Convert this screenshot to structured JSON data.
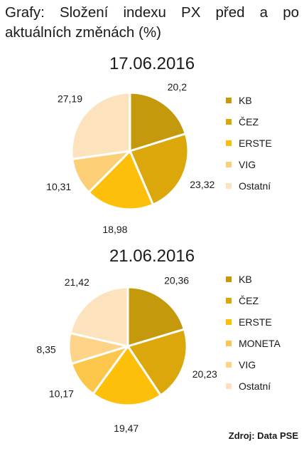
{
  "header": {
    "title_words": [
      "Grafy:",
      "Složení",
      "indexu",
      "PX",
      "před",
      "a",
      "po"
    ],
    "title_line2": "aktuálních změnách (%)"
  },
  "source": "Zdroj: Data PSE",
  "chart_data": [
    {
      "type": "pie",
      "title": "17.06.2016",
      "legend_position": "right",
      "slices": [
        {
          "name": "KB",
          "value": 20.2,
          "label": "20,2",
          "color": "#c49a0c"
        },
        {
          "name": "ČEZ",
          "value": 23.32,
          "label": "23,32",
          "color": "#dba70a"
        },
        {
          "name": "ERSTE",
          "value": 18.98,
          "label": "18,98",
          "color": "#fdbf09"
        },
        {
          "name": "VIG",
          "value": 10.31,
          "label": "10,31",
          "color": "#fccf77"
        },
        {
          "name": "Ostatní",
          "value": 27.19,
          "label": "27,19",
          "color": "#fde3bd"
        }
      ]
    },
    {
      "type": "pie",
      "title": "21.06.2016",
      "legend_position": "right",
      "slices": [
        {
          "name": "KB",
          "value": 20.36,
          "label": "20,36",
          "color": "#c49a0c"
        },
        {
          "name": "ČEZ",
          "value": 20.23,
          "label": "20,23",
          "color": "#dba70a"
        },
        {
          "name": "ERSTE",
          "value": 19.47,
          "label": "19,47",
          "color": "#fdbf09"
        },
        {
          "name": "MONETA",
          "value": 10.17,
          "label": "10,17",
          "color": "#fcc64a"
        },
        {
          "name": "VIG",
          "value": 8.35,
          "label": "8,35",
          "color": "#fdd487"
        },
        {
          "name": "Ostatní",
          "value": 21.42,
          "label": "21,42",
          "color": "#fde3bd"
        }
      ]
    }
  ]
}
